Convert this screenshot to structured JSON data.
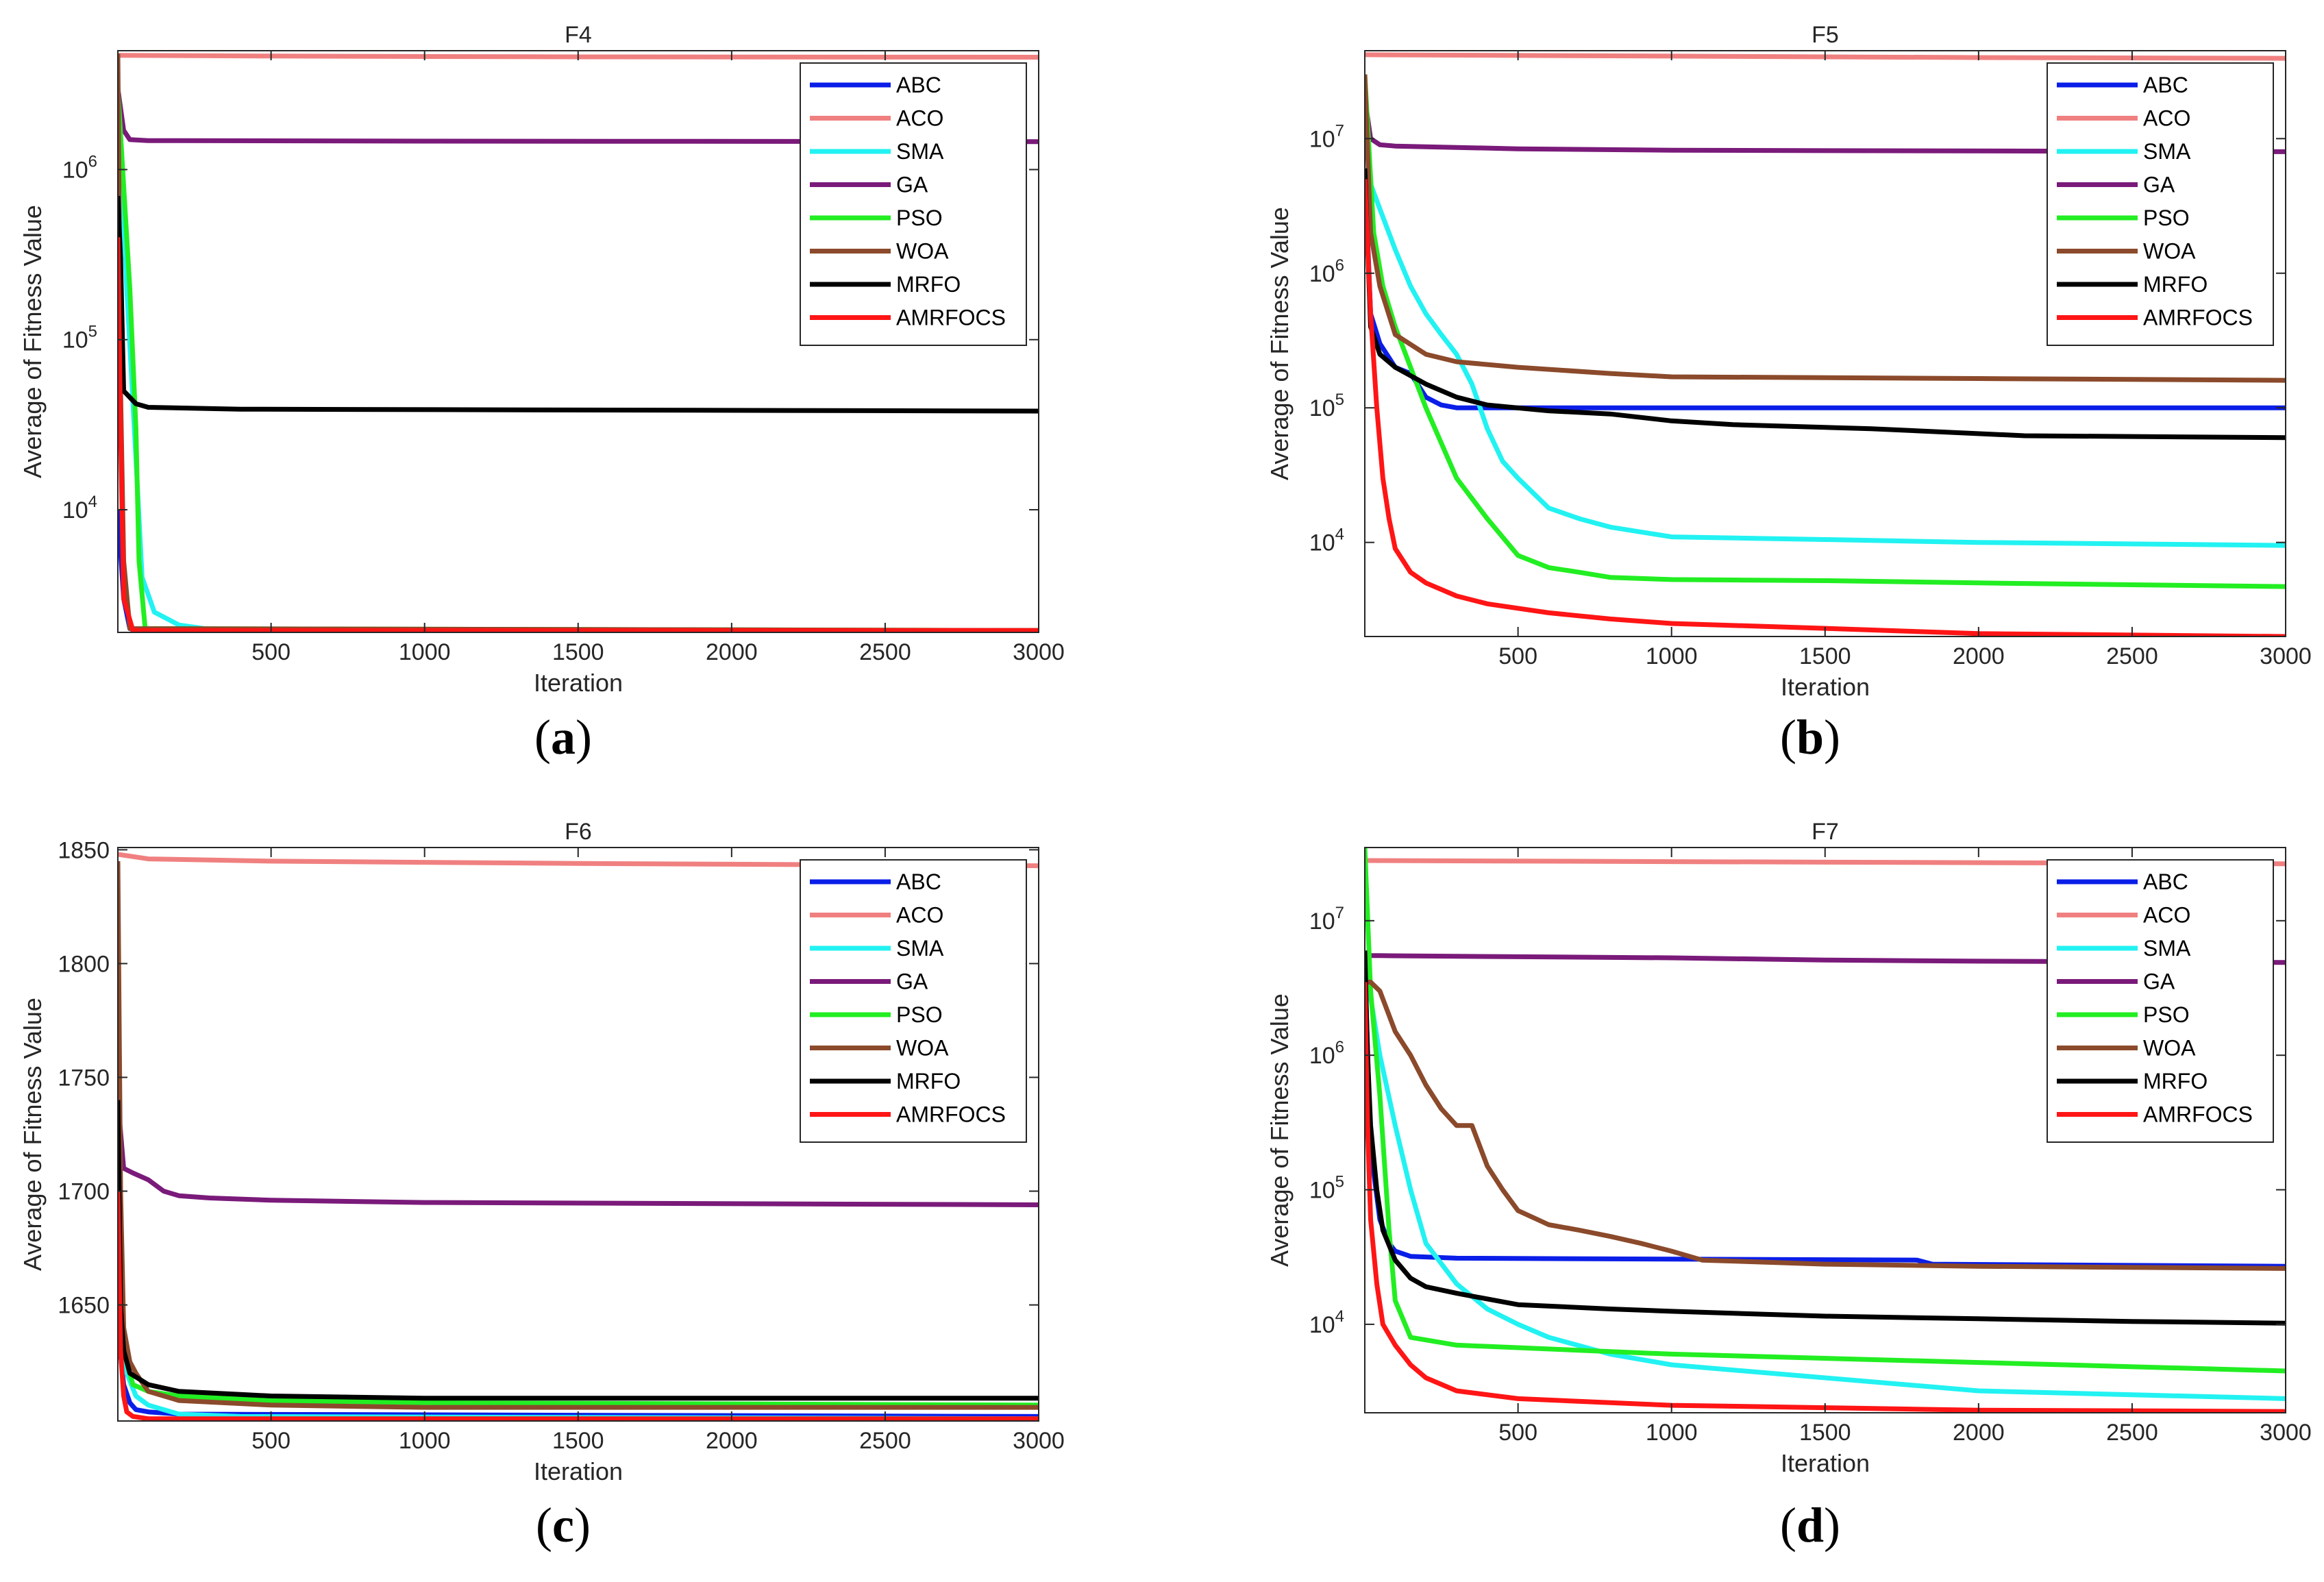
{
  "series_names": [
    "ABC",
    "ACO",
    "SMA",
    "GA",
    "PSO",
    "WOA",
    "MRFO",
    "AMRFOCS"
  ],
  "colors": {
    "ABC": "#0a1ee8",
    "ACO": "#f08080",
    "SMA": "#22f2f2",
    "GA": "#7a1a7a",
    "PSO": "#22ee22",
    "WOA": "#8b4a2b",
    "MRFO": "#000000",
    "AMRFOCS": "#ff1515"
  },
  "chart_data": [
    {
      "type": "line",
      "panel": "(a)",
      "title": "F4",
      "xlabel": "Iteration",
      "ylabel": "Average of Fitness Value",
      "yscale": "log",
      "xlim": [
        1,
        3000
      ],
      "ylim": [
        1900,
        5000000
      ],
      "xticks": [
        500,
        1000,
        1500,
        2000,
        2500,
        3000
      ],
      "xticklabels": [
        "500",
        "1000",
        "1500",
        "2000",
        "2500",
        "3000"
      ],
      "yticks": [
        10000,
        100000,
        1000000
      ],
      "ytick_base": "10",
      "ytick_exps": [
        "4",
        "5",
        "6"
      ],
      "legend_loc": "top-right",
      "series": [
        {
          "name": "ABC",
          "x": [
            1,
            20,
            40,
            60,
            3000
          ],
          "y": [
            10000,
            3000,
            2000,
            1950,
            1950
          ]
        },
        {
          "name": "ACO",
          "x": [
            1,
            500,
            1500,
            3000
          ],
          "y": [
            4700000,
            4650000,
            4600000,
            4580000
          ]
        },
        {
          "name": "SMA",
          "x": [
            1,
            30,
            60,
            80,
            120,
            200,
            300,
            400,
            3000
          ],
          "y": [
            3000000,
            200000,
            20000,
            4000,
            2500,
            2100,
            1980,
            1960,
            1950
          ]
        },
        {
          "name": "GA",
          "x": [
            1,
            20,
            40,
            100,
            1000,
            3000
          ],
          "y": [
            3000000,
            1700000,
            1500000,
            1480000,
            1470000,
            1460000
          ]
        },
        {
          "name": "PSO",
          "x": [
            1,
            20,
            40,
            60,
            70,
            90,
            3000
          ],
          "y": [
            3000000,
            800000,
            200000,
            30000,
            5000,
            2000,
            1950
          ]
        },
        {
          "name": "WOA",
          "x": [
            1,
            10,
            20,
            40,
            3000
          ],
          "y": [
            4800000,
            50000,
            5000,
            2000,
            1950
          ]
        },
        {
          "name": "MRFO",
          "x": [
            1,
            10,
            20,
            60,
            100,
            400,
            3000
          ],
          "y": [
            700000,
            300000,
            50000,
            42000,
            40000,
            39000,
            38000
          ]
        },
        {
          "name": "AMRFOCS",
          "x": [
            1,
            10,
            20,
            50,
            3000
          ],
          "y": [
            400000,
            30000,
            3000,
            1950,
            1950
          ]
        }
      ]
    },
    {
      "type": "line",
      "panel": "(b)",
      "title": "F5",
      "xlabel": "Iteration",
      "ylabel": "Average of Fitness Value",
      "yscale": "log",
      "xlim": [
        1,
        3000
      ],
      "ylim": [
        2000,
        45000000
      ],
      "xticks": [
        500,
        1000,
        1500,
        2000,
        2500,
        3000
      ],
      "xticklabels": [
        "500",
        "1000",
        "1500",
        "2000",
        "2500",
        "3000"
      ],
      "yticks": [
        10000,
        100000,
        1000000,
        10000000
      ],
      "ytick_base": "10",
      "ytick_exps": [
        "4",
        "5",
        "6",
        "7"
      ],
      "legend_loc": "top-right",
      "series": [
        {
          "name": "ABC",
          "x": [
            1,
            20,
            50,
            100,
            150,
            200,
            250,
            300,
            3000
          ],
          "y": [
            6000000,
            500000,
            300000,
            200000,
            180000,
            120000,
            105000,
            100000,
            100000
          ]
        },
        {
          "name": "ACO",
          "x": [
            1,
            1000,
            2000,
            3000
          ],
          "y": [
            42000000,
            41000000,
            40000000,
            39500000
          ]
        },
        {
          "name": "SMA",
          "x": [
            1,
            50,
            100,
            150,
            200,
            250,
            300,
            350,
            400,
            450,
            500,
            600,
            700,
            800,
            1000,
            1500,
            2000,
            3000
          ],
          "y": [
            6000000,
            3000000,
            1500000,
            800000,
            500000,
            350000,
            250000,
            150000,
            70000,
            40000,
            30000,
            18000,
            15000,
            13000,
            11000,
            10500,
            10000,
            9500
          ]
        },
        {
          "name": "GA",
          "x": [
            1,
            20,
            50,
            100,
            500,
            1000,
            3000
          ],
          "y": [
            20000000,
            10000000,
            9000000,
            8800000,
            8400000,
            8200000,
            8000000
          ]
        },
        {
          "name": "PSO",
          "x": [
            1,
            30,
            60,
            100,
            200,
            300,
            400,
            500,
            600,
            700,
            800,
            1000,
            1500,
            2000,
            3000
          ],
          "y": [
            30000000,
            2000000,
            800000,
            400000,
            100000,
            30000,
            15000,
            8000,
            6500,
            6000,
            5500,
            5300,
            5200,
            5000,
            4700
          ]
        },
        {
          "name": "WOA",
          "x": [
            1,
            20,
            50,
            100,
            200,
            300,
            500,
            800,
            1000,
            2000,
            3000
          ],
          "y": [
            30000000,
            2000000,
            800000,
            350000,
            250000,
            220000,
            200000,
            180000,
            170000,
            165000,
            160000
          ]
        },
        {
          "name": "MRFO",
          "x": [
            1,
            20,
            50,
            100,
            200,
            300,
            400,
            600,
            800,
            1000,
            1200,
            1650,
            2150,
            3000
          ],
          "y": [
            6000000,
            400000,
            250000,
            200000,
            150000,
            120000,
            105000,
            95000,
            90000,
            80000,
            75000,
            70000,
            62000,
            60000
          ]
        },
        {
          "name": "AMRFOCS",
          "x": [
            1,
            20,
            40,
            60,
            80,
            100,
            150,
            200,
            300,
            400,
            600,
            800,
            1000,
            1500,
            2000,
            3000
          ],
          "y": [
            5000000,
            500000,
            100000,
            30000,
            15000,
            9000,
            6000,
            5000,
            4000,
            3500,
            3000,
            2700,
            2500,
            2300,
            2100,
            2000
          ]
        }
      ]
    },
    {
      "type": "line",
      "panel": "(c)",
      "title": "F6",
      "xlabel": "Iteration",
      "ylabel": "Average of Fitness Value",
      "yscale": "linear",
      "xlim": [
        1,
        3000
      ],
      "ylim": [
        1599,
        1851
      ],
      "xticks": [
        500,
        1000,
        1500,
        2000,
        2500,
        3000
      ],
      "xticklabels": [
        "500",
        "1000",
        "1500",
        "2000",
        "2500",
        "3000"
      ],
      "yticks": [
        1650,
        1700,
        1750,
        1800,
        1850
      ],
      "yticklabels": [
        "1650",
        "1700",
        "1750",
        "1800",
        "1850"
      ],
      "legend_loc": "top-right",
      "series": [
        {
          "name": "ABC",
          "x": [
            1,
            20,
            40,
            60,
            100,
            200,
            3000
          ],
          "y": [
            1640,
            1615,
            1607,
            1604,
            1603,
            1602,
            1601
          ]
        },
        {
          "name": "ACO",
          "x": [
            1,
            100,
            500,
            1500,
            3000
          ],
          "y": [
            1848,
            1846,
            1845,
            1844,
            1843
          ]
        },
        {
          "name": "SMA",
          "x": [
            1,
            30,
            60,
            100,
            200,
            400,
            3000
          ],
          "y": [
            1660,
            1620,
            1610,
            1606,
            1602,
            1601,
            1600
          ]
        },
        {
          "name": "GA",
          "x": [
            1,
            20,
            50,
            100,
            150,
            200,
            300,
            500,
            1000,
            3000
          ],
          "y": [
            1740,
            1710,
            1708,
            1705,
            1700,
            1698,
            1697,
            1696,
            1695,
            1694
          ]
        },
        {
          "name": "PSO",
          "x": [
            1,
            20,
            50,
            100,
            200,
            500,
            1000,
            3000
          ],
          "y": [
            1700,
            1630,
            1615,
            1612,
            1610,
            1608,
            1607,
            1606
          ]
        },
        {
          "name": "WOA",
          "x": [
            1,
            10,
            20,
            40,
            60,
            100,
            200,
            500,
            1000,
            3000
          ],
          "y": [
            1845,
            1700,
            1640,
            1625,
            1620,
            1612,
            1608,
            1606,
            1605,
            1605
          ]
        },
        {
          "name": "MRFO",
          "x": [
            1,
            10,
            20,
            40,
            100,
            200,
            500,
            1000,
            3000
          ],
          "y": [
            1740,
            1650,
            1630,
            1620,
            1615,
            1612,
            1610,
            1609,
            1609
          ]
        },
        {
          "name": "AMRFOCS",
          "x": [
            1,
            10,
            20,
            30,
            50,
            100,
            3000
          ],
          "y": [
            1700,
            1630,
            1610,
            1603,
            1601,
            1600,
            1600
          ]
        }
      ]
    },
    {
      "type": "line",
      "panel": "(d)",
      "title": "F7",
      "xlabel": "Iteration",
      "ylabel": "Average of Fitness Value",
      "yscale": "log",
      "xlim": [
        1,
        3000
      ],
      "ylim": [
        2200,
        35000000
      ],
      "xticks": [
        500,
        1000,
        1500,
        2000,
        2500,
        3000
      ],
      "xticklabels": [
        "500",
        "1000",
        "1500",
        "2000",
        "2500",
        "3000"
      ],
      "yticks": [
        10000,
        100000,
        1000000,
        10000000
      ],
      "ytick_base": "10",
      "ytick_exps": [
        "4",
        "5",
        "6",
        "7"
      ],
      "legend_loc": "top-right",
      "series": [
        {
          "name": "ABC",
          "x": [
            1,
            20,
            50,
            80,
            100,
            150,
            300,
            1800,
            1850,
            3000
          ],
          "y": [
            5000000,
            200000,
            60000,
            40000,
            35000,
            32000,
            31000,
            30000,
            28000,
            27000
          ]
        },
        {
          "name": "ACO",
          "x": [
            1,
            1000,
            2000,
            3000
          ],
          "y": [
            28000000,
            27500000,
            27000000,
            26500000
          ]
        },
        {
          "name": "SMA",
          "x": [
            1,
            50,
            100,
            150,
            200,
            300,
            400,
            500,
            600,
            800,
            1000,
            1500,
            2000,
            3000
          ],
          "y": [
            5000000,
            1000000,
            300000,
            100000,
            40000,
            20000,
            13000,
            10000,
            8000,
            6000,
            5000,
            4000,
            3200,
            2800
          ]
        },
        {
          "name": "GA",
          "x": [
            1,
            50,
            500,
            1000,
            1500,
            2000,
            3000
          ],
          "y": [
            5500000,
            5500000,
            5400000,
            5300000,
            5100000,
            5000000,
            4900000
          ]
        },
        {
          "name": "PSO",
          "x": [
            1,
            20,
            50,
            80,
            100,
            150,
            300,
            1000,
            2000,
            3000
          ],
          "y": [
            35000000,
            3000000,
            500000,
            50000,
            15000,
            8000,
            7000,
            6000,
            5200,
            4500
          ]
        },
        {
          "name": "WOA",
          "x": [
            1,
            20,
            50,
            100,
            150,
            200,
            250,
            300,
            350,
            400,
            450,
            500,
            600,
            700,
            800,
            900,
            1000,
            1100,
            1500,
            2000,
            3000
          ],
          "y": [
            3500000,
            3500000,
            3000000,
            1500000,
            1000000,
            600000,
            400000,
            300000,
            300000,
            150000,
            100000,
            70000,
            55000,
            50000,
            45000,
            40000,
            35000,
            30000,
            28000,
            27000,
            26000
          ]
        },
        {
          "name": "MRFO",
          "x": [
            1,
            10,
            20,
            40,
            60,
            100,
            150,
            200,
            300,
            500,
            800,
            1000,
            1500,
            2000,
            2500,
            3000
          ],
          "y": [
            6000000,
            1000000,
            300000,
            100000,
            50000,
            30000,
            22000,
            19000,
            17000,
            14000,
            13000,
            12500,
            11500,
            11000,
            10500,
            10200
          ]
        },
        {
          "name": "AMRFOCS",
          "x": [
            1,
            10,
            20,
            40,
            60,
            100,
            150,
            200,
            300,
            500,
            1000,
            1500,
            2000,
            3000
          ],
          "y": [
            3500000,
            300000,
            60000,
            20000,
            10000,
            7000,
            5000,
            4000,
            3200,
            2800,
            2500,
            2400,
            2300,
            2250
          ]
        }
      ]
    }
  ]
}
